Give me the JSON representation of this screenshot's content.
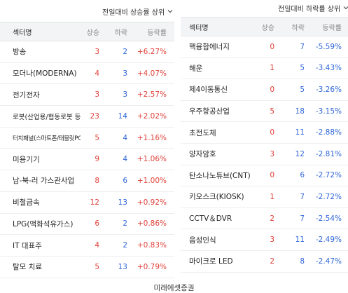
{
  "left": {
    "sort_label": "전일대비 상승률 상위",
    "headers": {
      "name": "섹터명",
      "up": "상승",
      "down": "하락",
      "rate": "등락률"
    },
    "rows": [
      {
        "name": "방송",
        "up": "3",
        "down": "2",
        "rate": "+6.27%"
      },
      {
        "name": "모더나(MODERNA)",
        "up": "4",
        "down": "3",
        "rate": "+4.07%"
      },
      {
        "name": "전기전자",
        "up": "3",
        "down": "3",
        "rate": "+2.57%"
      },
      {
        "name": "로봇(산업용/협동로봇 등)",
        "up": "23",
        "down": "14",
        "rate": "+2.02%"
      },
      {
        "name": "터치패널(스마트폰/태블릿PC 등)",
        "up": "5",
        "down": "4",
        "rate": "+1.16%"
      },
      {
        "name": "미용기기",
        "up": "9",
        "down": "4",
        "rate": "+1.06%"
      },
      {
        "name": "남-북-러 가스관사업",
        "up": "8",
        "down": "6",
        "rate": "+1.00%"
      },
      {
        "name": "비철금속",
        "up": "12",
        "down": "13",
        "rate": "+0.92%"
      },
      {
        "name": "LPG(액화석유가스)",
        "up": "6",
        "down": "2",
        "rate": "+0.86%"
      },
      {
        "name": "IT 대표주",
        "up": "4",
        "down": "2",
        "rate": "+0.83%"
      },
      {
        "name": "탈모 치료",
        "up": "5",
        "down": "13",
        "rate": "+0.79%"
      }
    ]
  },
  "right": {
    "sort_label": "전일대비 하락률 상위",
    "headers": {
      "name": "섹터명",
      "up": "상승",
      "down": "하락",
      "rate": "등락률"
    },
    "rows": [
      {
        "name": "핵융합에너지",
        "up": "0",
        "down": "7",
        "rate": "-5.59%"
      },
      {
        "name": "해운",
        "up": "1",
        "down": "5",
        "rate": "-3.43%"
      },
      {
        "name": "제4이동통신",
        "up": "0",
        "down": "5",
        "rate": "-3.26%"
      },
      {
        "name": "우주항공산업",
        "up": "5",
        "down": "18",
        "rate": "-3.15%"
      },
      {
        "name": "초전도체",
        "up": "0",
        "down": "11",
        "rate": "-2.88%"
      },
      {
        "name": "양자암호",
        "up": "3",
        "down": "12",
        "rate": "-2.81%"
      },
      {
        "name": "탄소나노튜브(CNT)",
        "up": "0",
        "down": "6",
        "rate": "-2.72%"
      },
      {
        "name": "키오스크(KIOSK)",
        "up": "1",
        "down": "7",
        "rate": "-2.72%"
      },
      {
        "name": "CCTV＆DVR",
        "up": "2",
        "down": "7",
        "rate": "-2.54%"
      },
      {
        "name": "음성인식",
        "up": "3",
        "down": "11",
        "rate": "-2.49%"
      },
      {
        "name": "마이크로 LED",
        "up": "2",
        "down": "8",
        "rate": "-2.47%"
      }
    ]
  },
  "footer": "미래에셋증권",
  "colors": {
    "up": "#e0413a",
    "down": "#2f67d8",
    "header_bg": "#f3f4f6"
  },
  "icons": {
    "sort_dropdown": "chevron-down-icon"
  }
}
